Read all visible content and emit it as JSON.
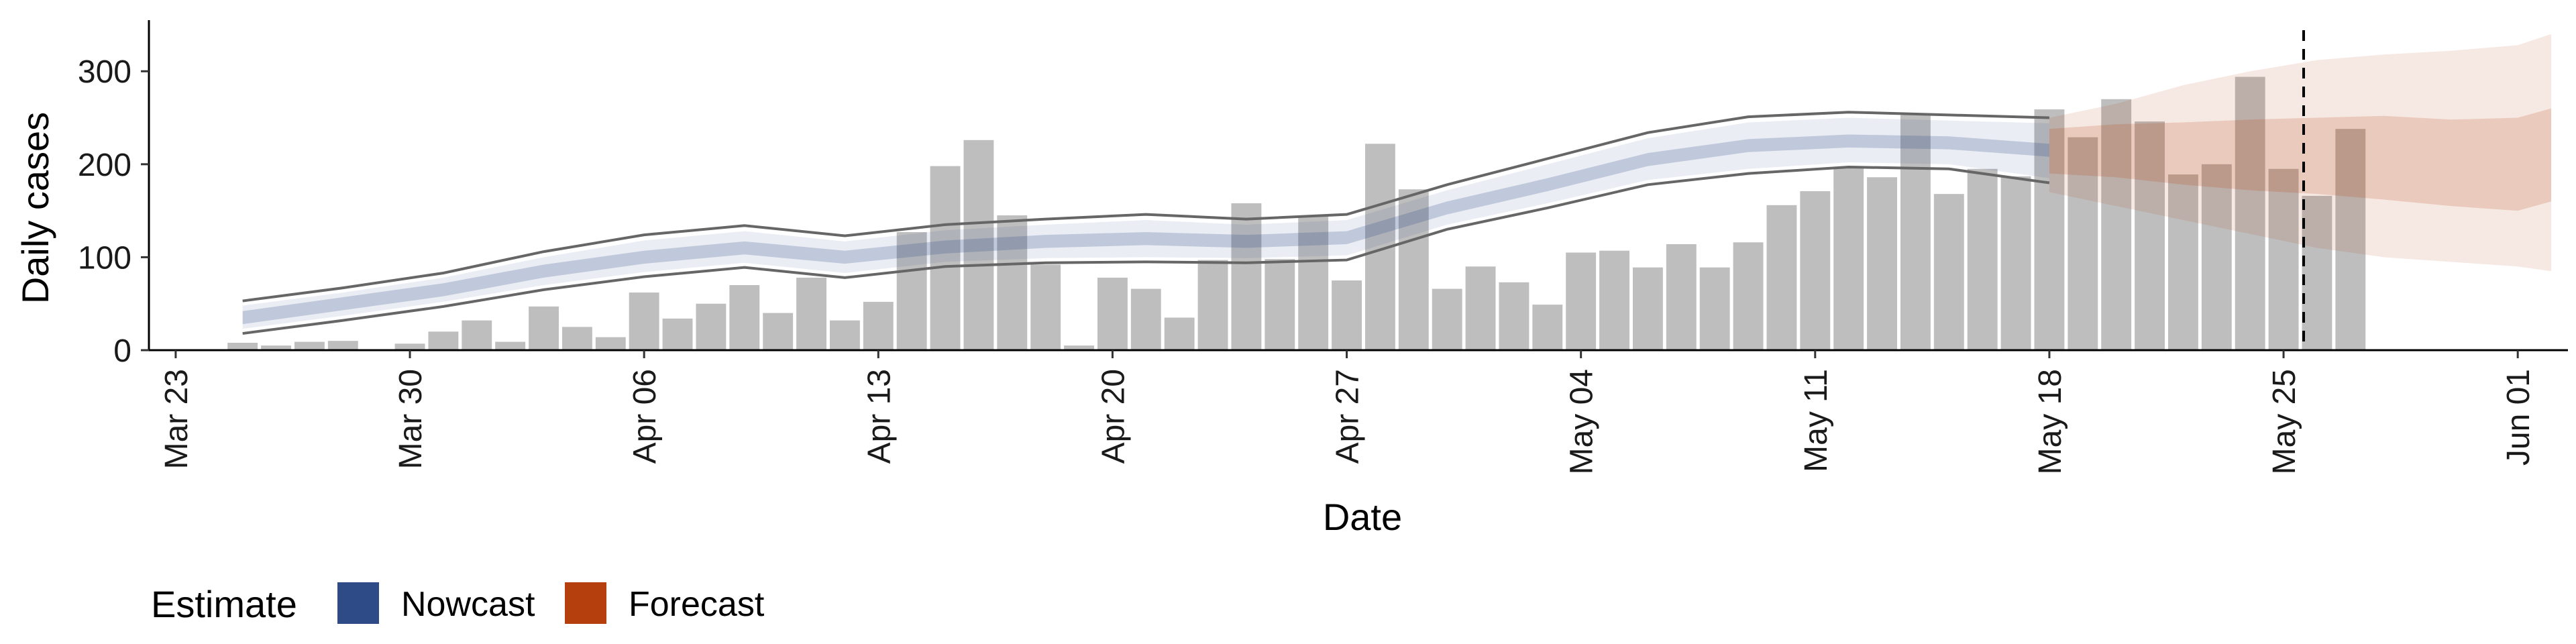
{
  "chart_data": {
    "type": "bar",
    "title": "",
    "xlabel": "Date",
    "ylabel": "Daily cases",
    "ylim": [
      0,
      355
    ],
    "yticks": [
      0,
      100,
      200,
      300
    ],
    "x_start": "2020-03-23",
    "xlim": [
      -0.8,
      71.5
    ],
    "x_tick_positions": [
      0,
      7,
      14,
      21,
      28,
      35,
      42,
      49,
      56,
      63,
      70
    ],
    "x_tick_labels": [
      "Mar 23",
      "Mar 30",
      "Apr 06",
      "Apr 13",
      "Apr 20",
      "Apr 27",
      "May 04",
      "May 11",
      "May 18",
      "May 25",
      "Jun 01"
    ],
    "grid": false,
    "colors": {
      "bars": "#bebebe",
      "nowcast": "#2E4A87",
      "forecast": "#B5400E",
      "interval_line": "#666666"
    },
    "cases": {
      "x_start": 2,
      "values": [
        8,
        5,
        9,
        10,
        0,
        7,
        20,
        32,
        9,
        47,
        25,
        14,
        62,
        34,
        50,
        70,
        40,
        78,
        32,
        52,
        127,
        198,
        226,
        145,
        92,
        5,
        78,
        66,
        35,
        97,
        158,
        98,
        145,
        75,
        222,
        173,
        66,
        90,
        73,
        49,
        105,
        107,
        89,
        114,
        89,
        116,
        156,
        171,
        197,
        186,
        253,
        168,
        195,
        187,
        259,
        229,
        270,
        246,
        189,
        200,
        294,
        195,
        166,
        238
      ]
    },
    "nowcast": {
      "x": [
        2,
        5,
        8,
        11,
        14,
        17,
        20,
        23,
        26,
        29,
        32,
        35,
        38,
        41,
        44,
        47,
        50,
        53,
        56
      ],
      "median": [
        35,
        50,
        65,
        85,
        100,
        110,
        100,
        111,
        117,
        120,
        117,
        121,
        153,
        178,
        205,
        220,
        225,
        223,
        215
      ],
      "upper": [
        48,
        62,
        78,
        100,
        118,
        128,
        117,
        129,
        135,
        140,
        135,
        140,
        172,
        200,
        228,
        245,
        250,
        247,
        244
      ],
      "lower": [
        23,
        37,
        52,
        70,
        84,
        94,
        83,
        95,
        99,
        100,
        99,
        102,
        135,
        158,
        183,
        195,
        202,
        200,
        185
      ],
      "upper90": [
        53,
        67,
        83,
        106,
        124,
        134,
        123,
        135,
        141,
        146,
        141,
        146,
        178,
        206,
        234,
        251,
        256,
        253,
        250
      ],
      "lower90": [
        18,
        32,
        47,
        65,
        79,
        89,
        78,
        90,
        94,
        95,
        94,
        97,
        130,
        153,
        178,
        190,
        197,
        195,
        180
      ]
    },
    "forecast": {
      "x": [
        56,
        58,
        60,
        62,
        64,
        66,
        68,
        70,
        71
      ],
      "median": [
        215,
        217,
        215,
        212,
        210,
        208,
        205,
        210,
        212
      ],
      "upper50": [
        238,
        243,
        245,
        248,
        250,
        252,
        248,
        250,
        260
      ],
      "lower50": [
        190,
        186,
        178,
        172,
        168,
        162,
        155,
        150,
        160
      ],
      "upper90": [
        250,
        265,
        285,
        300,
        312,
        318,
        322,
        328,
        340
      ],
      "lower90": [
        170,
        155,
        140,
        125,
        110,
        100,
        95,
        90,
        85
      ]
    },
    "vline_x": 63.6,
    "legend": {
      "position": "bottom",
      "title": "Estimate",
      "items": [
        {
          "label": "Nowcast",
          "color": "#2E4A87"
        },
        {
          "label": "Forecast",
          "color": "#B5400E"
        }
      ]
    }
  }
}
